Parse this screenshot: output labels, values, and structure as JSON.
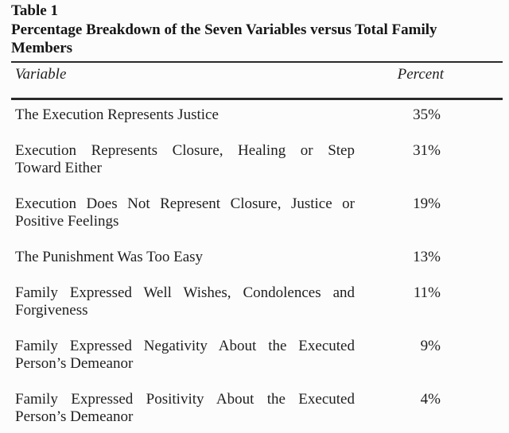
{
  "title": {
    "label": "Table 1",
    "caption": "Percentage Breakdown of the Seven Variables versus Total Family Members"
  },
  "table": {
    "columns": {
      "variable": "Variable",
      "percent": "Percent"
    },
    "rows": [
      {
        "lines": [
          "The Execution Represents Justice"
        ],
        "percent": "35%"
      },
      {
        "lines": [
          "Execution Represents Closure, Healing or Step",
          "Toward Either"
        ],
        "percent": "31%"
      },
      {
        "lines": [
          "Execution Does Not Represent Closure, Justice or",
          "Positive Feelings"
        ],
        "percent": "19%"
      },
      {
        "lines": [
          "The Punishment Was Too Easy"
        ],
        "percent": "13%"
      },
      {
        "lines": [
          "Family Expressed Well Wishes, Condolences and",
          "Forgiveness"
        ],
        "percent": "11%"
      },
      {
        "lines": [
          "Family Expressed Negativity About the Executed",
          "Person’s Demeanor"
        ],
        "percent": "9%"
      },
      {
        "lines": [
          "Family Expressed Positivity About the Executed",
          "Person’s Demeanor"
        ],
        "percent": "4%"
      }
    ]
  },
  "colors": {
    "text": "#1f1f1f",
    "rule": "#2a2a2a",
    "background": "#fcfcfc"
  }
}
